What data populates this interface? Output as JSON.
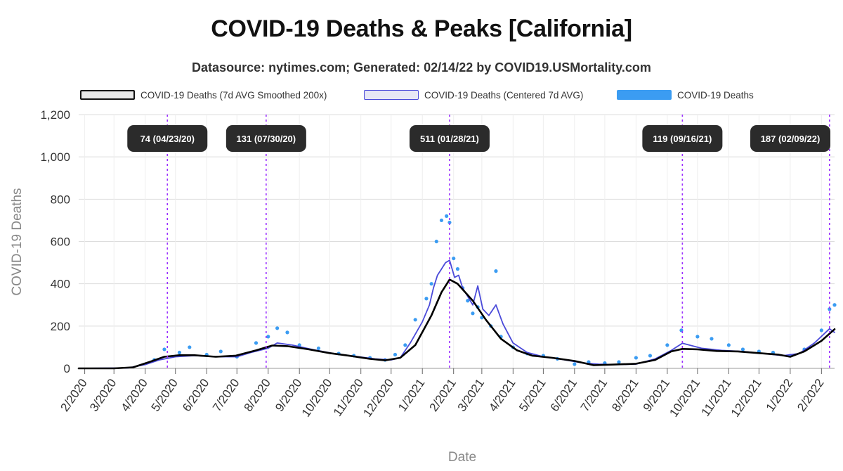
{
  "chart_data": {
    "type": "line",
    "title": "COVID-19 Deaths & Peaks [California]",
    "subtitle": "Datasource: nytimes.com; Generated: 02/14/22 by COVID19.USMortality.com",
    "xlabel": "Date",
    "ylabel": "COVID-19 Deaths",
    "ylim": [
      0,
      1200
    ],
    "y_ticks": [
      0,
      200,
      400,
      600,
      800,
      1000,
      1200
    ],
    "y_tick_labels": [
      "0",
      "200",
      "400",
      "600",
      "800",
      "1,000",
      "1,200"
    ],
    "x_range": [
      "2020-01-26",
      "2022-02-14"
    ],
    "x_ticks": [
      "2020-02-01",
      "2020-03-01",
      "2020-04-01",
      "2020-05-01",
      "2020-06-01",
      "2020-07-01",
      "2020-08-01",
      "2020-09-01",
      "2020-10-01",
      "2020-11-01",
      "2020-12-01",
      "2021-01-01",
      "2021-02-01",
      "2021-03-01",
      "2021-04-01",
      "2021-05-01",
      "2021-06-01",
      "2021-07-01",
      "2021-08-01",
      "2021-09-01",
      "2021-10-01",
      "2021-11-01",
      "2021-12-01",
      "2022-01-01",
      "2022-02-01"
    ],
    "x_tick_labels": [
      "2/2020",
      "3/2020",
      "4/2020",
      "5/2020",
      "6/2020",
      "7/2020",
      "8/2020",
      "9/2020",
      "10/2020",
      "11/2020",
      "12/2020",
      "1/2021",
      "2/2021",
      "3/2021",
      "4/2021",
      "5/2021",
      "6/2021",
      "7/2021",
      "8/2021",
      "9/2021",
      "10/2021",
      "11/2021",
      "12/2021",
      "1/2022",
      "2/2022"
    ],
    "grid": true,
    "legend_position": "top",
    "series": [
      {
        "name": "COVID-19 Deaths (7d AVG Smoothed 200x)",
        "style": "line",
        "color": "#000000",
        "x": [
          "2020-01-26",
          "2020-03-01",
          "2020-03-20",
          "2020-04-05",
          "2020-04-20",
          "2020-05-05",
          "2020-05-20",
          "2020-06-10",
          "2020-06-30",
          "2020-07-20",
          "2020-08-05",
          "2020-08-20",
          "2020-09-10",
          "2020-10-01",
          "2020-10-20",
          "2020-11-10",
          "2020-11-25",
          "2020-12-10",
          "2020-12-25",
          "2021-01-10",
          "2021-01-20",
          "2021-01-28",
          "2021-02-05",
          "2021-02-20",
          "2021-03-05",
          "2021-03-20",
          "2021-04-05",
          "2021-04-20",
          "2021-05-10",
          "2021-06-01",
          "2021-06-20",
          "2021-07-10",
          "2021-08-01",
          "2021-08-20",
          "2021-09-05",
          "2021-09-16",
          "2021-10-01",
          "2021-10-20",
          "2021-11-10",
          "2021-12-01",
          "2021-12-20",
          "2022-01-01",
          "2022-01-15",
          "2022-02-01",
          "2022-02-14"
        ],
        "values": [
          0,
          0,
          5,
          30,
          55,
          62,
          62,
          55,
          60,
          85,
          108,
          105,
          90,
          72,
          60,
          45,
          38,
          50,
          110,
          250,
          360,
          420,
          400,
          320,
          230,
          140,
          85,
          60,
          50,
          35,
          15,
          18,
          22,
          40,
          80,
          92,
          90,
          82,
          80,
          72,
          65,
          55,
          80,
          130,
          185
        ]
      },
      {
        "name": "COVID-19 Deaths (Centered 7d AVG)",
        "style": "line",
        "color": "#4a4ad9",
        "x": [
          "2020-01-26",
          "2020-03-15",
          "2020-04-01",
          "2020-04-15",
          "2020-05-01",
          "2020-05-20",
          "2020-06-10",
          "2020-07-01",
          "2020-07-15",
          "2020-08-01",
          "2020-08-10",
          "2020-08-25",
          "2020-09-15",
          "2020-10-05",
          "2020-10-25",
          "2020-11-15",
          "2020-12-01",
          "2020-12-10",
          "2020-12-20",
          "2021-01-01",
          "2021-01-08",
          "2021-01-12",
          "2021-01-16",
          "2021-01-20",
          "2021-01-24",
          "2021-01-28",
          "2021-02-02",
          "2021-02-06",
          "2021-02-10",
          "2021-02-15",
          "2021-02-20",
          "2021-02-25",
          "2021-03-02",
          "2021-03-08",
          "2021-03-15",
          "2021-03-22",
          "2021-04-01",
          "2021-04-15",
          "2021-05-01",
          "2021-05-20",
          "2021-06-10",
          "2021-06-25",
          "2021-07-10",
          "2021-08-01",
          "2021-08-20",
          "2021-09-05",
          "2021-09-16",
          "2021-10-05",
          "2021-10-25",
          "2021-11-15",
          "2021-12-05",
          "2021-12-25",
          "2022-01-10",
          "2022-01-25",
          "2022-02-09",
          "2022-02-14"
        ],
        "values": [
          0,
          2,
          18,
          40,
          55,
          60,
          55,
          55,
          75,
          95,
          120,
          110,
          88,
          70,
          58,
          45,
          40,
          50,
          120,
          220,
          300,
          380,
          440,
          470,
          500,
          511,
          430,
          440,
          380,
          340,
          300,
          390,
          280,
          250,
          300,
          210,
          120,
          75,
          55,
          42,
          25,
          20,
          18,
          20,
          45,
          85,
          119,
          95,
          85,
          80,
          70,
          60,
          70,
          120,
          187,
          170
        ]
      },
      {
        "name": "COVID-19 Deaths",
        "style": "scatter",
        "color": "#3b9cf2",
        "x": [
          "2020-04-10",
          "2020-04-20",
          "2020-05-05",
          "2020-05-15",
          "2020-06-01",
          "2020-06-15",
          "2020-07-01",
          "2020-07-20",
          "2020-08-01",
          "2020-08-10",
          "2020-08-20",
          "2020-09-01",
          "2020-09-20",
          "2020-10-10",
          "2020-10-25",
          "2020-11-10",
          "2020-11-25",
          "2020-12-05",
          "2020-12-15",
          "2020-12-25",
          "2021-01-05",
          "2021-01-10",
          "2021-01-15",
          "2021-01-20",
          "2021-01-25",
          "2021-01-28",
          "2021-02-01",
          "2021-02-05",
          "2021-02-10",
          "2021-02-15",
          "2021-02-20",
          "2021-02-25",
          "2021-03-01",
          "2021-03-10",
          "2021-03-15",
          "2021-03-20",
          "2021-04-01",
          "2021-04-15",
          "2021-05-01",
          "2021-05-15",
          "2021-06-01",
          "2021-06-15",
          "2021-07-01",
          "2021-07-15",
          "2021-08-01",
          "2021-08-15",
          "2021-09-01",
          "2021-09-15",
          "2021-10-01",
          "2021-10-15",
          "2021-11-01",
          "2021-11-15",
          "2021-12-01",
          "2021-12-15",
          "2022-01-01",
          "2022-01-15",
          "2022-02-01",
          "2022-02-09",
          "2022-02-14"
        ],
        "values": [
          40,
          90,
          75,
          100,
          65,
          80,
          55,
          120,
          150,
          190,
          170,
          110,
          95,
          70,
          60,
          50,
          40,
          65,
          110,
          230,
          330,
          400,
          600,
          700,
          720,
          690,
          520,
          470,
          380,
          320,
          260,
          290,
          240,
          200,
          460,
          150,
          100,
          70,
          60,
          45,
          20,
          30,
          25,
          30,
          50,
          60,
          110,
          180,
          150,
          140,
          110,
          90,
          80,
          75,
          60,
          90,
          180,
          280,
          300
        ]
      }
    ],
    "peaks": [
      {
        "label": "74 (04/23/20)",
        "date": "2020-04-23"
      },
      {
        "label": "131 (07/30/20)",
        "date": "2020-07-30"
      },
      {
        "label": "511 (01/28/21)",
        "date": "2021-01-28"
      },
      {
        "label": "119 (09/16/21)",
        "date": "2021-09-16"
      },
      {
        "label": "187 (02/09/22)",
        "date": "2022-02-09"
      }
    ]
  },
  "legend": {
    "items": [
      {
        "label": "COVID-19 Deaths (7d AVG Smoothed 200x)",
        "fill": "#e8e8e8",
        "border": "#111111"
      },
      {
        "label": "COVID-19 Deaths (Centered 7d AVG)",
        "fill": "#e6e6f5",
        "border": "#4a4ad9"
      },
      {
        "label": "COVID-19 Deaths",
        "fill": "#3b9cf2",
        "border": "#3b9cf2"
      }
    ]
  },
  "colors": {
    "smoothed": "#000000",
    "centered": "#4a4ad9",
    "daily": "#3b9cf2",
    "peak_line": "#9b30ff",
    "peak_box": "#2b2b2b",
    "grid": "#dddddd"
  }
}
